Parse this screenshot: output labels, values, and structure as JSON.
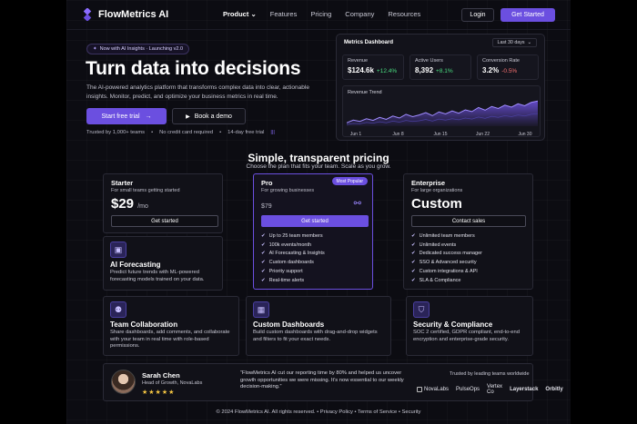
{
  "nav": {
    "brand": "FlowMetrics AI",
    "links": [
      "Product",
      "Features",
      "Pricing",
      "Company",
      "Resources"
    ],
    "login": "Login",
    "cta": "Get Started"
  },
  "hero": {
    "pill": "Now with AI Insights · Launching v2.0",
    "title": "Turn data into decisions",
    "subtitle": "The AI-powered analytics platform that transforms complex data into clear, actionable insights. Monitor, predict, and optimize your business metrics in real time.",
    "cta_primary": "Start free trial",
    "cta_secondary": "Book a demo",
    "trust": [
      "Trusted by 1,000+ teams",
      "No credit card required",
      "14-day free trial"
    ]
  },
  "dashboard": {
    "title": "Metrics Dashboard",
    "range": "Last 30 days",
    "kpis": [
      {
        "label": "Revenue",
        "value": "$124.6k",
        "delta": "+12.4%",
        "color": "#4ade80"
      },
      {
        "label": "Active Users",
        "value": "8,392",
        "delta": "+8.1%",
        "color": "#4ade80"
      },
      {
        "label": "Conversion Rate",
        "value": "3.2%",
        "delta": "-0.5%",
        "color": "#f87171"
      }
    ],
    "trend_title": "Revenue Trend",
    "trend_xlabels": [
      "Jun 1",
      "Jun 8",
      "Jun 15",
      "Jun 22",
      "Jun 30"
    ],
    "trend_values": [
      10,
      18,
      14,
      22,
      17,
      26,
      20,
      30,
      24,
      35,
      28,
      33,
      40,
      31,
      42,
      36,
      45,
      38,
      48,
      43,
      55,
      47,
      58,
      52,
      62,
      56,
      66,
      60,
      70,
      74
    ],
    "trend_values_2": [
      5,
      8,
      7,
      11,
      9,
      13,
      10,
      15,
      12,
      17,
      14,
      16,
      20,
      15,
      21,
      18,
      22,
      19,
      24,
      21,
      27,
      23,
      29,
      26,
      31,
      28,
      33,
      30,
      35,
      37
    ]
  },
  "pricing": {
    "title": "Simple, transparent pricing",
    "subtitle": "Choose the plan that fits your team. Scale as you grow.",
    "plans": [
      {
        "name": "Starter",
        "desc": "For small teams getting started",
        "price": "$29",
        "period": "/mo",
        "cta": "Get started",
        "features": []
      },
      {
        "name": "Pro",
        "desc": "For growing businesses",
        "price": "$79",
        "period": "",
        "cta": "Get started",
        "badge": "Most Popular",
        "features": [
          "Up to 25 team members",
          "100k events/month",
          "AI Forecasting & Insights",
          "Custom dashboards",
          "Priority support",
          "Real-time alerts"
        ]
      },
      {
        "name": "Enterprise",
        "desc": "For large organizations",
        "price": "Custom",
        "period": "",
        "cta": "Contact sales",
        "features": [
          "Unlimited team members",
          "Unlimited events",
          "Dedicated success manager",
          "SSO & Advanced security",
          "Custom integrations & API",
          "SLA & Compliance"
        ]
      }
    ]
  },
  "features": [
    {
      "title": "AI Forecasting",
      "text": "Predict future trends with ML-powered forecasting models trained on your data.",
      "icon": "chip-icon"
    },
    {
      "title": "Team Collaboration",
      "text": "Share dashboards, add comments, and collaborate with your team in real time with role-based permissions.",
      "icon": "team-icon"
    },
    {
      "title": "Custom Dashboards",
      "text": "Build custom dashboards with drag-and-drop widgets and filters to fit your exact needs.",
      "icon": "grid-icon"
    },
    {
      "title": "Security & Compliance",
      "text": "SOC 2 certified, GDPR compliant, end-to-end encryption and enterprise-grade security.",
      "icon": "shield-icon"
    }
  ],
  "testimonial": {
    "name": "Sarah Chen",
    "role": "Head of Growth, NovaLabs",
    "stars": "★★★★★",
    "quote": "“FlowMetrics AI cut our reporting time by 80% and helped us uncover growth opportunities we were missing. It’s now essential to our weekly decision-making.”",
    "trusted_label": "Trusted by leading teams worldwide",
    "logos": [
      "NovaLabs",
      "PulseOps",
      "Vertex Co",
      "Layerstack",
      "Orbitly"
    ]
  },
  "footer": {
    "copyright": "© 2024 FlowMetrics AI. All rights reserved.",
    "links": [
      "Privacy Policy",
      "Terms of Service",
      "Security"
    ]
  }
}
